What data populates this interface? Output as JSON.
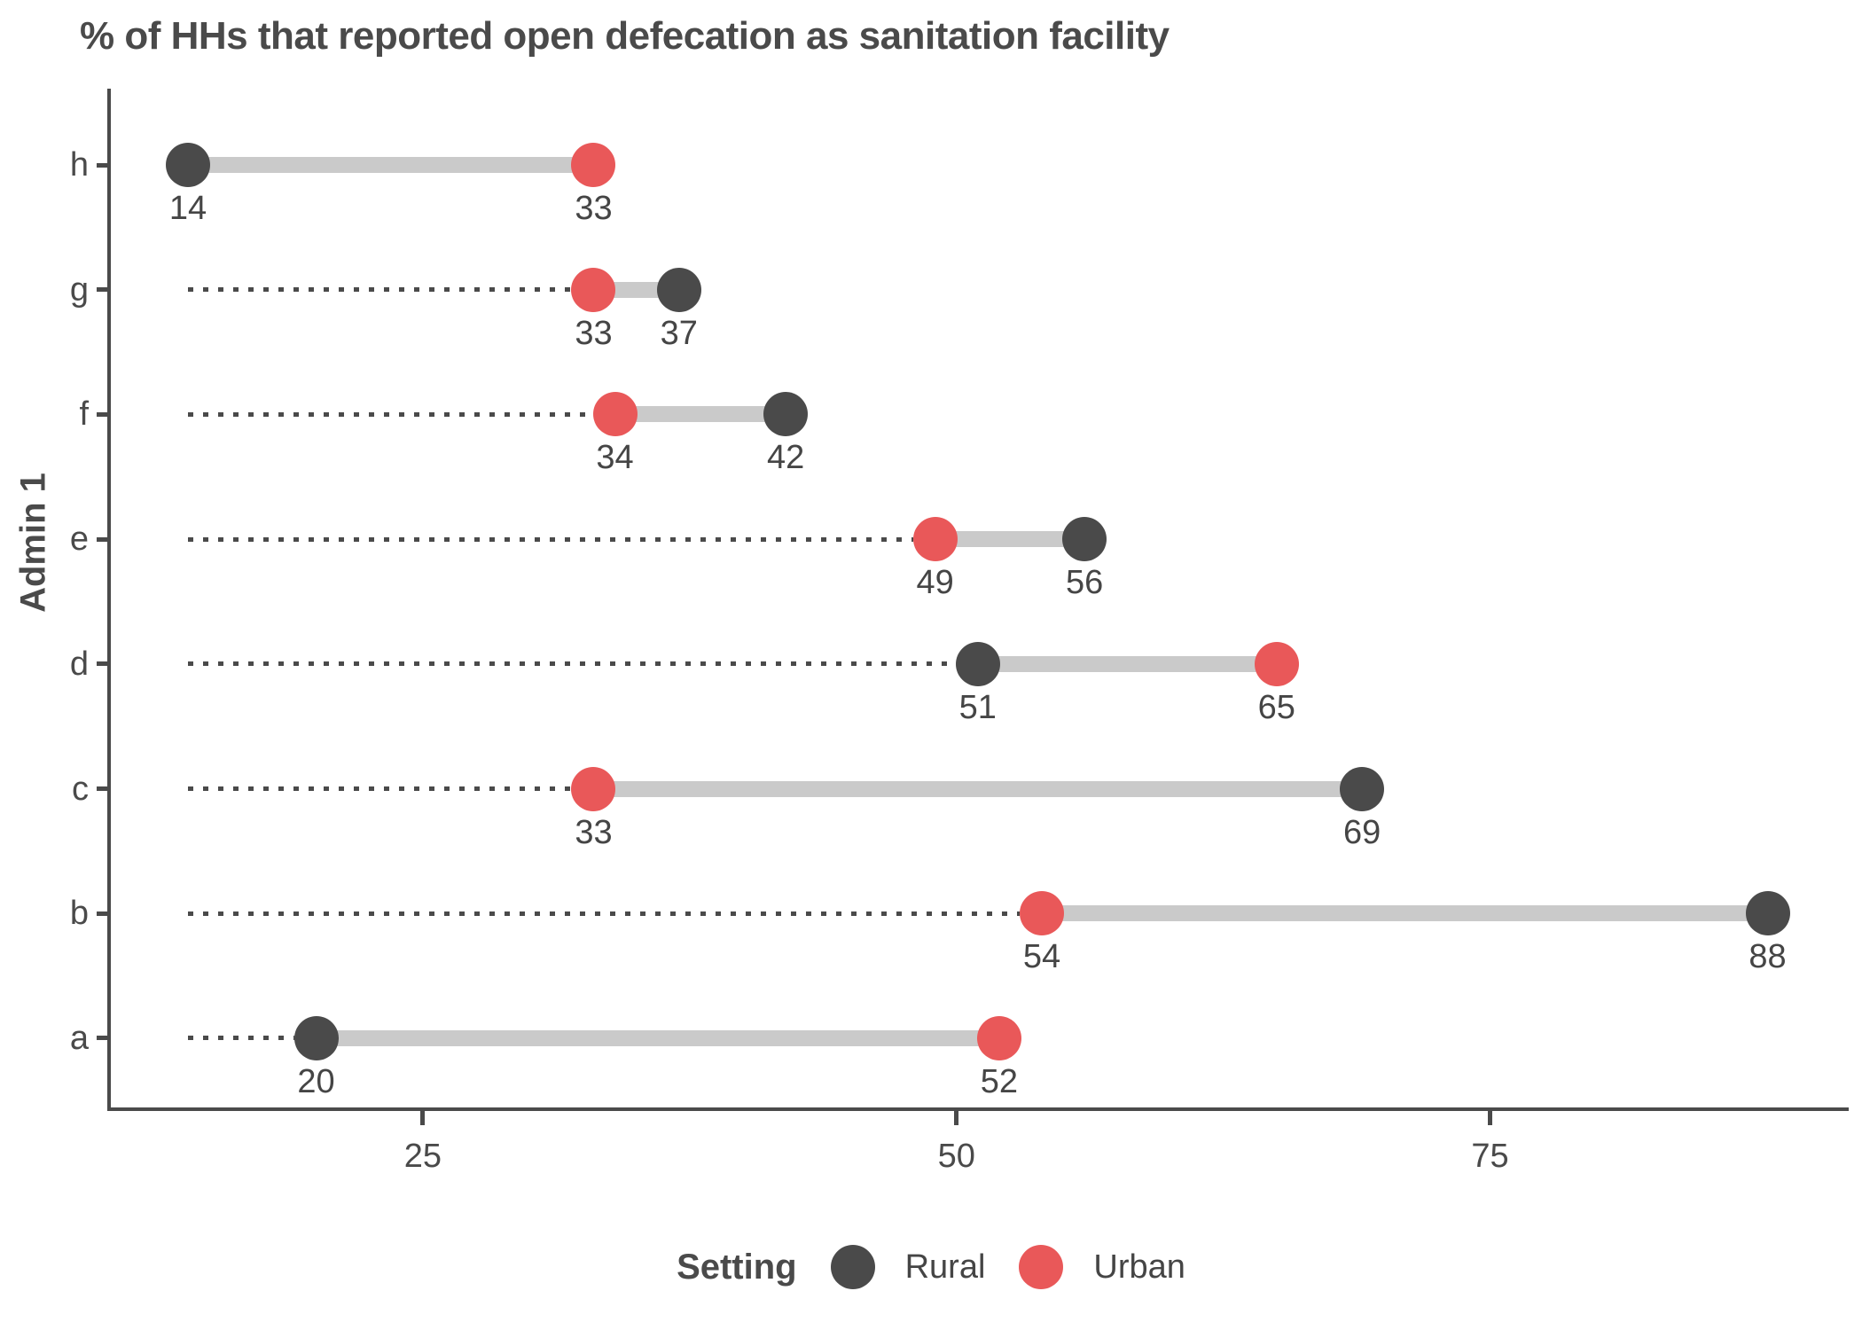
{
  "title": "% of HHs that reported open defecation as sanitation facility",
  "y_axis_title": "Admin 1",
  "legend": {
    "title": "Setting",
    "items": [
      {
        "label": "Rural",
        "color": "#4a4a4a"
      },
      {
        "label": "Urban",
        "color": "#e95859"
      }
    ]
  },
  "colors": {
    "rural": "#4a4a4a",
    "urban": "#e95859",
    "connector": "#cacaca",
    "leader_dotted": "#4a4a4a",
    "axis": "#4a4a4a",
    "text": "#4a4a4a"
  },
  "chart_data": {
    "type": "dumbbell",
    "title": "% of HHs that reported open defecation as sanitation facility",
    "xlabel": "",
    "ylabel": "Admin 1",
    "categories": [
      "h",
      "g",
      "f",
      "e",
      "d",
      "c",
      "b",
      "a"
    ],
    "series": [
      {
        "name": "Rural",
        "color": "#4a4a4a",
        "values": [
          14,
          37,
          42,
          56,
          51,
          69,
          88,
          20
        ]
      },
      {
        "name": "Urban",
        "color": "#e95859",
        "values": [
          33,
          33,
          34,
          49,
          65,
          33,
          54,
          52
        ]
      }
    ],
    "x_ticks": [
      25,
      50,
      75
    ],
    "xlim": [
      10.3,
      91.8
    ],
    "grid": false,
    "legend_position": "bottom",
    "value_labels": "shown below each point",
    "leader_line": "dotted line from global minimum value (14) to each row's leftmost point"
  }
}
